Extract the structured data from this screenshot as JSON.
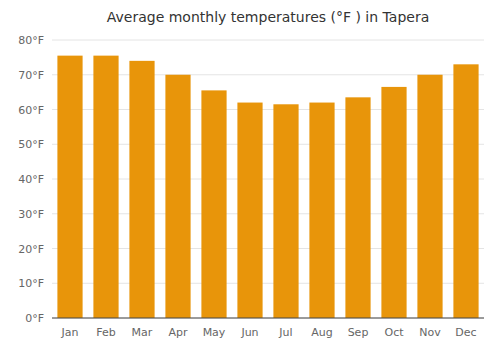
{
  "chart_data": {
    "type": "bar",
    "title": "Average monthly temperatures (°F ) in Tapera",
    "categories": [
      "Jan",
      "Feb",
      "Mar",
      "Apr",
      "May",
      "Jun",
      "Jul",
      "Aug",
      "Sep",
      "Oct",
      "Nov",
      "Dec"
    ],
    "values": [
      75.5,
      75.5,
      74.0,
      70.0,
      65.5,
      62.0,
      61.5,
      62.0,
      63.5,
      66.5,
      70.0,
      73.0
    ],
    "color": "#E8950A",
    "ylim": [
      0,
      80
    ],
    "yticks": [
      {
        "value": 0,
        "label": "0°F"
      },
      {
        "value": 10,
        "label": "10°F"
      },
      {
        "value": 20,
        "label": "20°F"
      },
      {
        "value": 30,
        "label": "30°F"
      },
      {
        "value": 40,
        "label": "40°F"
      },
      {
        "value": 50,
        "label": "50°F"
      },
      {
        "value": 60,
        "label": "60°F"
      },
      {
        "value": 70,
        "label": "70°F"
      },
      {
        "value": 80,
        "label": "80°F"
      }
    ],
    "grid": true
  }
}
